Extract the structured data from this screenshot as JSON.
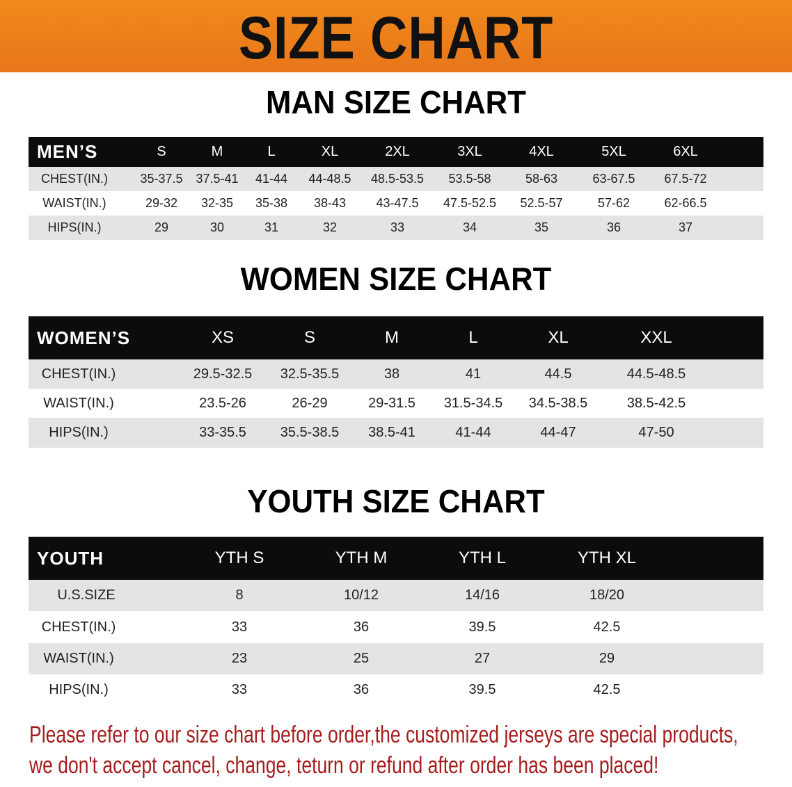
{
  "banner": {
    "title": "SIZE CHART",
    "color": "#ee8a1e"
  },
  "men": {
    "title": "MAN SIZE CHART",
    "header": "MEN’S",
    "sizes": [
      "S",
      "M",
      "L",
      "XL",
      "2XL",
      "3XL",
      "4XL",
      "5XL",
      "6XL"
    ],
    "rows": [
      {
        "label": "CHEST(IN.)",
        "values": [
          "35-37.5",
          "37.5-41",
          "41-44",
          "44-48.5",
          "48.5-53.5",
          "53.5-58",
          "58-63",
          "63-67.5",
          "67.5-72"
        ]
      },
      {
        "label": "WAIST(IN.)",
        "values": [
          "29-32",
          "32-35",
          "35-38",
          "38-43",
          "43-47.5",
          "47.5-52.5",
          "52.5-57",
          "57-62",
          "62-66.5"
        ]
      },
      {
        "label": "HIPS(IN.)",
        "values": [
          "29",
          "30",
          "31",
          "32",
          "33",
          "34",
          "35",
          "36",
          "37"
        ]
      }
    ]
  },
  "women": {
    "title": "WOMEN SIZE CHART",
    "header": "WOMEN’S",
    "sizes": [
      "XS",
      "S",
      "M",
      "L",
      "XL",
      "XXL"
    ],
    "rows": [
      {
        "label": "CHEST(IN.)",
        "values": [
          "29.5-32.5",
          "32.5-35.5",
          "38",
          "41",
          "44.5",
          "44.5-48.5"
        ]
      },
      {
        "label": "WAIST(IN.)",
        "values": [
          "23.5-26",
          "26-29",
          "29-31.5",
          "31.5-34.5",
          "34.5-38.5",
          "38.5-42.5"
        ]
      },
      {
        "label": "HIPS(IN.)",
        "values": [
          "33-35.5",
          "35.5-38.5",
          "38.5-41",
          "41-44",
          "44-47",
          "47-50"
        ]
      }
    ]
  },
  "youth": {
    "title": "YOUTH SIZE CHART",
    "header": "YOUTH",
    "sizes": [
      "YTH S",
      "YTH M",
      "YTH L",
      "YTH XL"
    ],
    "rows": [
      {
        "label": "U.S.SIZE",
        "values": [
          "8",
          "10/12",
          "14/16",
          "18/20"
        ]
      },
      {
        "label": "CHEST(IN.)",
        "values": [
          "33",
          "36",
          "39.5",
          "42.5"
        ]
      },
      {
        "label": "WAIST(IN.)",
        "values": [
          "23",
          "25",
          "27",
          "29"
        ]
      },
      {
        "label": "HIPS(IN.)",
        "values": [
          "33",
          "36",
          "39.5",
          "42.5"
        ]
      }
    ]
  },
  "notice": {
    "line1": "Please refer to our size chart before order,the customized jerseys are special products,",
    "line2": "we don't accept cancel, change, teturn or refund after order has been placed!",
    "color": "#a51d1d"
  }
}
